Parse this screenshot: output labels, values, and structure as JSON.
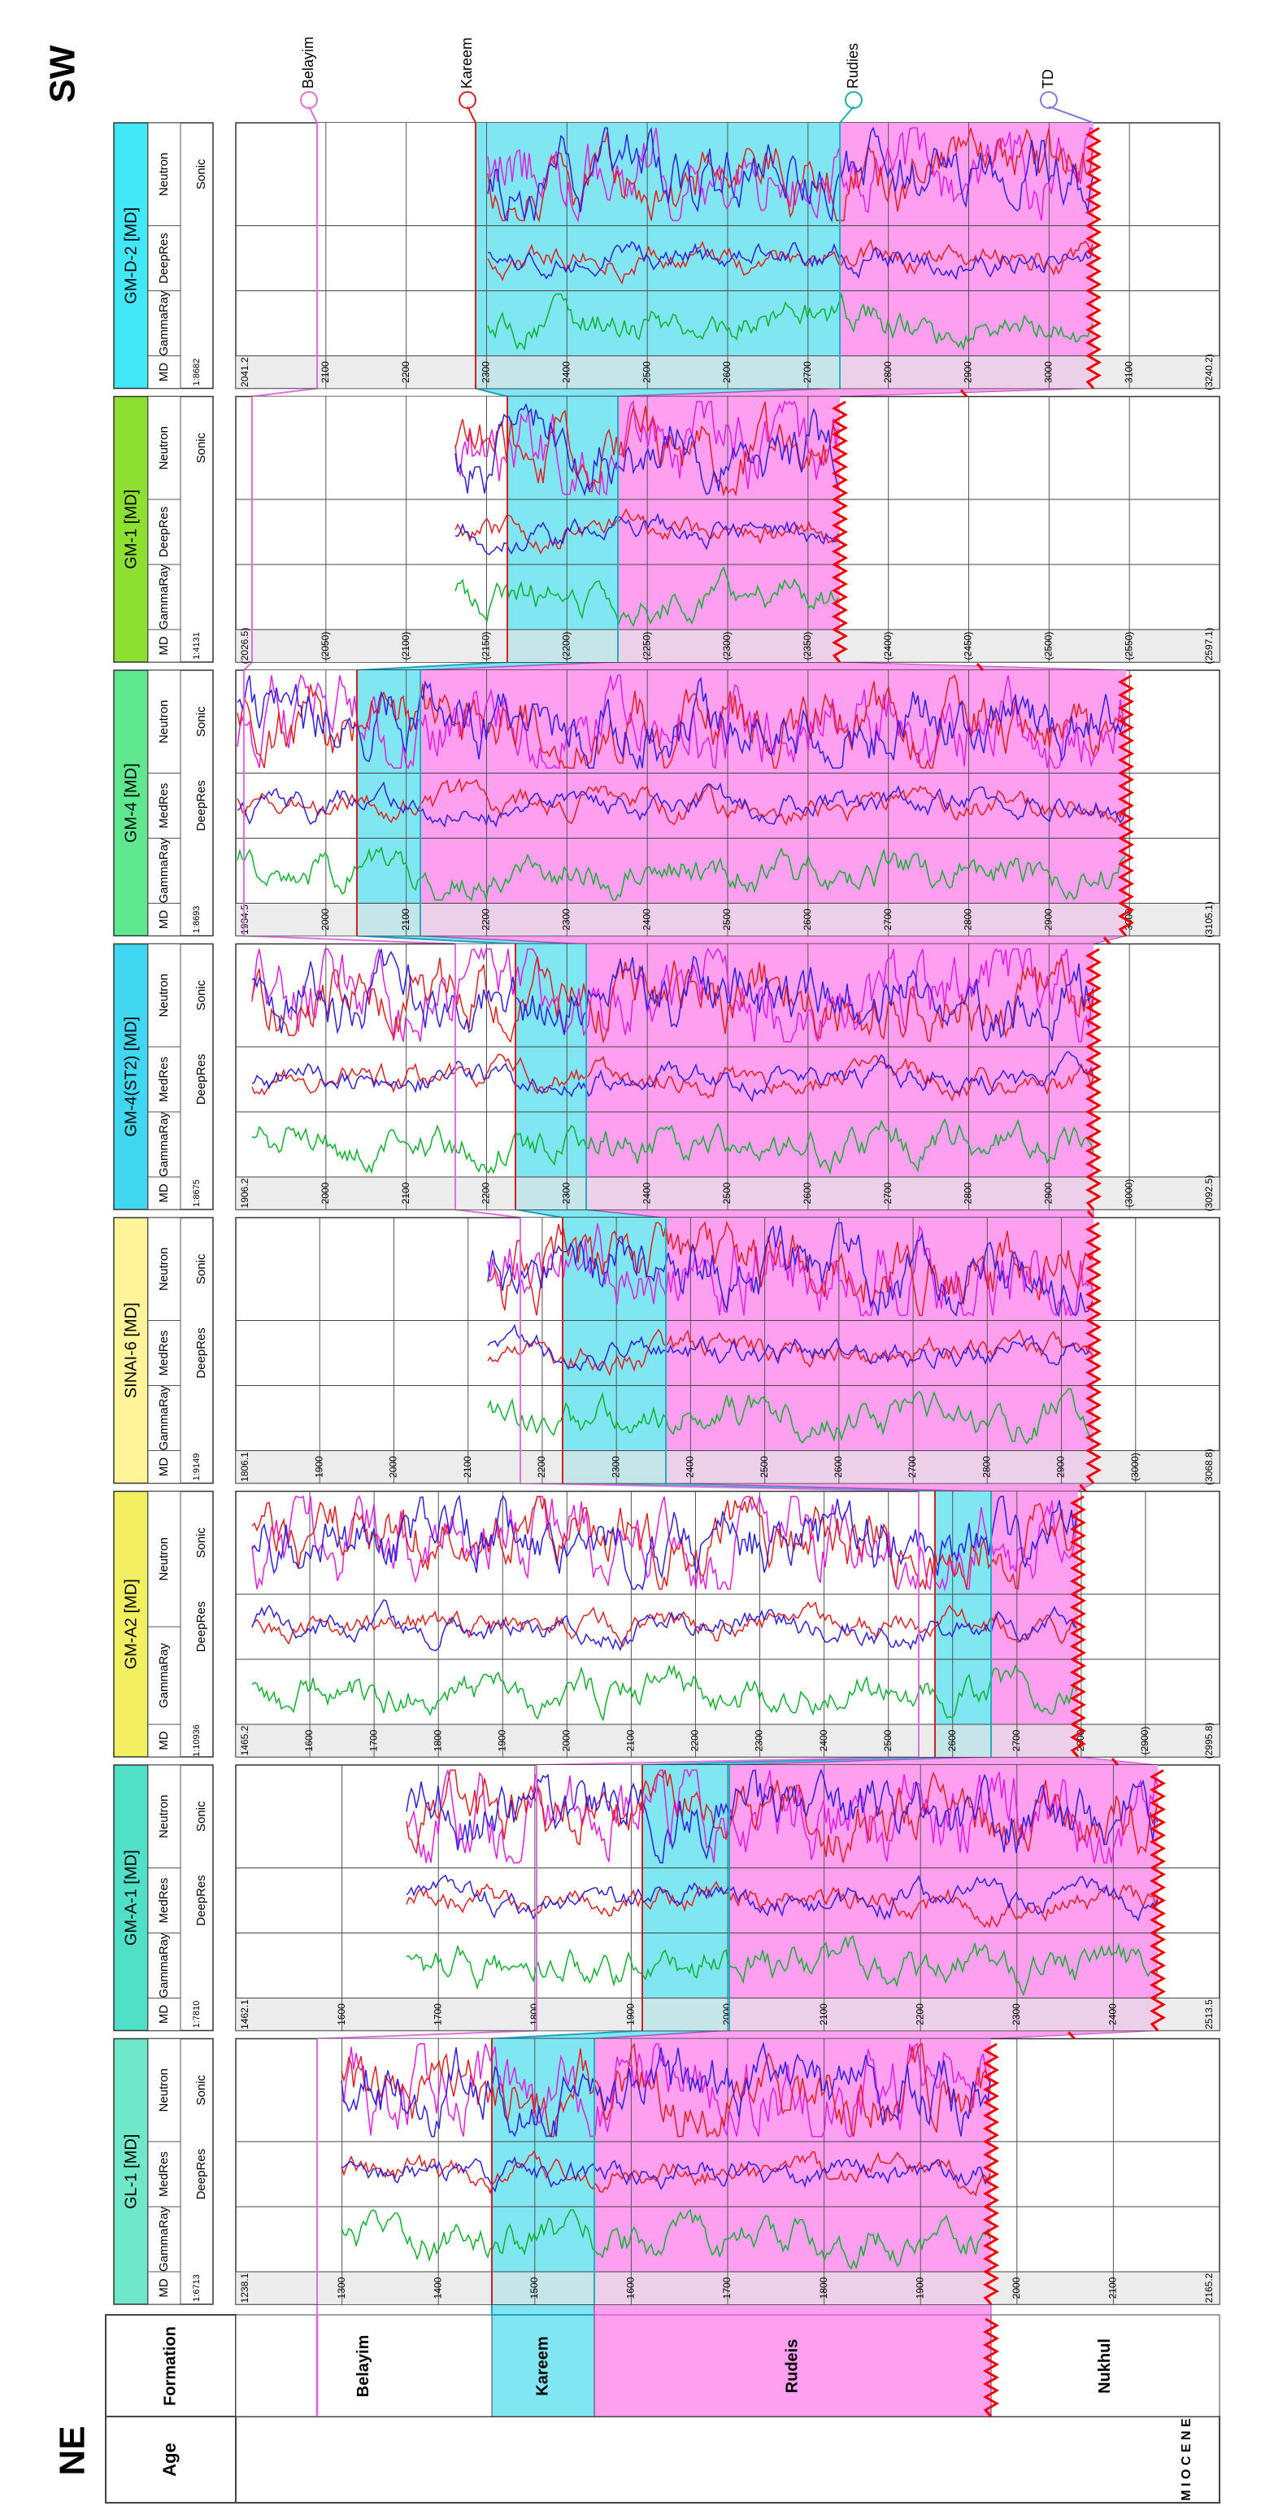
{
  "labels": {
    "left": "NE",
    "right": "SW"
  },
  "header": {
    "age": "Age",
    "formation": "Formation"
  },
  "age": "M I O C E N E",
  "formations": [
    "Belayim",
    "Kareem",
    "Rudeis",
    "Nukhul"
  ],
  "markers": [
    "Belayim",
    "Kareem",
    "Rudies",
    "TD"
  ],
  "wells": [
    {
      "name": "GL-1 [MD]",
      "scale": "1:6713",
      "columns": [
        "MD",
        "GammaRay",
        "MedRes",
        "Neutron"
      ],
      "subcolumns": [
        "DeepRes",
        "Sonic"
      ],
      "depths": [
        "1238.1",
        "1300",
        "1400",
        "1500",
        "1600",
        "1700",
        "1800",
        "1900",
        "2000",
        "2100",
        "2165.2"
      ]
    },
    {
      "name": "GM-A-1 [MD]",
      "scale": "1:7810",
      "columns": [
        "MD",
        "GammaRay",
        "MedRes",
        "Neutron"
      ],
      "subcolumns": [
        "DeepRes",
        "Sonic"
      ],
      "depths": [
        "1462.1",
        "1600",
        "1700",
        "1800",
        "1900",
        "2000",
        "2100",
        "2200",
        "2300",
        "2400",
        "2513.5"
      ]
    },
    {
      "name": "GM-A2 [MD]",
      "scale": "1:10936",
      "columns": [
        "MD",
        "GammaRay",
        "Neutron"
      ],
      "subcolumns": [
        "DeepRes",
        "Sonic"
      ],
      "depths": [
        "1465.2",
        "1600",
        "1700",
        "1800",
        "1900",
        "2000",
        "2100",
        "2200",
        "2300",
        "2400",
        "2500",
        "2600",
        "2700",
        "2800",
        "(2900)",
        "(2995.8)"
      ]
    },
    {
      "name": "SINAI-6 [MD]",
      "scale": "1:9149",
      "columns": [
        "MD",
        "GammaRay",
        "MedRes",
        "Neutron"
      ],
      "subcolumns": [
        "DeepRes",
        "Sonic"
      ],
      "depths": [
        "1806.1",
        "1900",
        "2000",
        "2100",
        "2200",
        "2300",
        "2400",
        "2500",
        "2600",
        "2700",
        "2800",
        "2900",
        "(3000)",
        "(3068.8)"
      ]
    },
    {
      "name": "GM-4(ST2) [MD]",
      "scale": "1:8675",
      "columns": [
        "MD",
        "GammaRay",
        "MedRes",
        "Neutron"
      ],
      "subcolumns": [
        "DeepRes",
        "Sonic"
      ],
      "depths": [
        "1906.2",
        "2000",
        "2100",
        "2200",
        "2300",
        "2400",
        "2500",
        "2600",
        "2700",
        "2800",
        "2900",
        "(3000)",
        "(3092.5)"
      ]
    },
    {
      "name": "GM-4 [MD]",
      "scale": "1:8693",
      "columns": [
        "MD",
        "GammaRay",
        "MedRes",
        "Neutron"
      ],
      "subcolumns": [
        "DeepRes",
        "Sonic"
      ],
      "depths": [
        "1934.5",
        "2000",
        "2100",
        "2200",
        "2300",
        "2400",
        "2500",
        "2600",
        "2700",
        "2800",
        "2900",
        "3000",
        "(3105.1)"
      ]
    },
    {
      "name": "GM-1 [MD]",
      "scale": "1:4131",
      "columns": [
        "MD",
        "GammaRay",
        "DeepRes",
        "Neutron"
      ],
      "subcolumns": [
        "Sonic"
      ],
      "depths": [
        "(2026.5)",
        "(2050)",
        "(2100)",
        "(2150)",
        "(2200)",
        "(2250)",
        "(2300)",
        "(2350)",
        "(2400)",
        "(2450)",
        "(2500)",
        "(2550)",
        "(2597.1)"
      ]
    },
    {
      "name": "GM-D-2 [MD]",
      "scale": "1:8682",
      "columns": [
        "MD",
        "GammaRay",
        "DeepRes",
        "Neutron"
      ],
      "subcolumns": [
        "Sonic"
      ],
      "depths": [
        "2041.2",
        "2100",
        "2200",
        "2300",
        "2400",
        "2500",
        "2600",
        "2700",
        "2800",
        "2900",
        "3000",
        "3100",
        "(3240.2)"
      ]
    }
  ]
}
